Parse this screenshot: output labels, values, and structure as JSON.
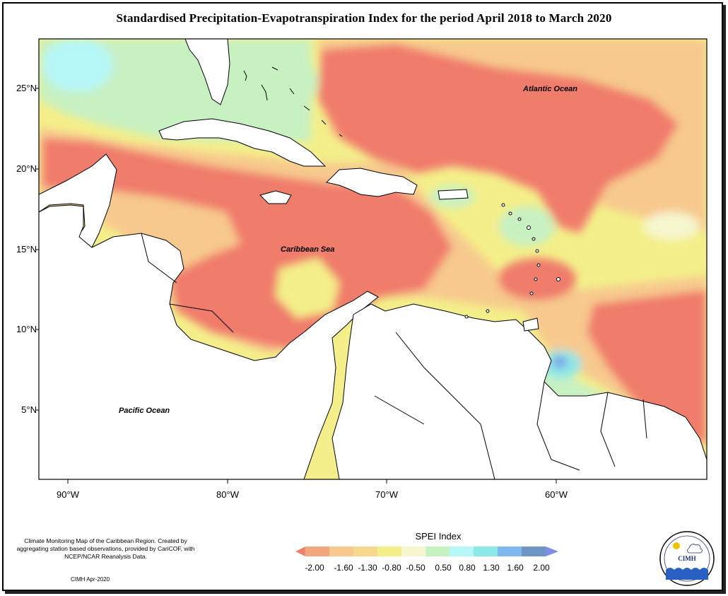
{
  "title": "Standardised Precipitation-Evapotranspiration Index for the period April 2018 to March 2020",
  "map": {
    "lat_ticks": [
      "25°N",
      "20°N",
      "15°N",
      "10°N",
      "5°N"
    ],
    "lon_ticks": [
      "90°W",
      "80°W",
      "70°W",
      "60°W"
    ],
    "labels": {
      "atlantic": "Atlantic Ocean",
      "caribbean": "Caribbean Sea",
      "pacific": "Pacific Ocean"
    }
  },
  "legend": {
    "title": "SPEI Index",
    "ticks": [
      "-2.00",
      "-1.60",
      "-1.30",
      "-0.80",
      "-0.50",
      "0.50",
      "0.80",
      "1.30",
      "1.60",
      "2.00"
    ],
    "colors": [
      "#f07c6c",
      "#f4a77f",
      "#f7c98e",
      "#f4ef8a",
      "#f6f6cf",
      "#c8f1c2",
      "#b6f7f7",
      "#8de8e8",
      "#7fb8ee",
      "#6f95c4",
      "#7d8ee6"
    ]
  },
  "footnote": {
    "text": "Climate Monitoring Map of the Caribbean Region. Created by aggregating station based observations, provided by CariCOF, with NCEP/NCAR Reanalysis Data.",
    "credit": "CIMH Apr-2020"
  },
  "logo": {
    "text": "CIMH"
  }
}
